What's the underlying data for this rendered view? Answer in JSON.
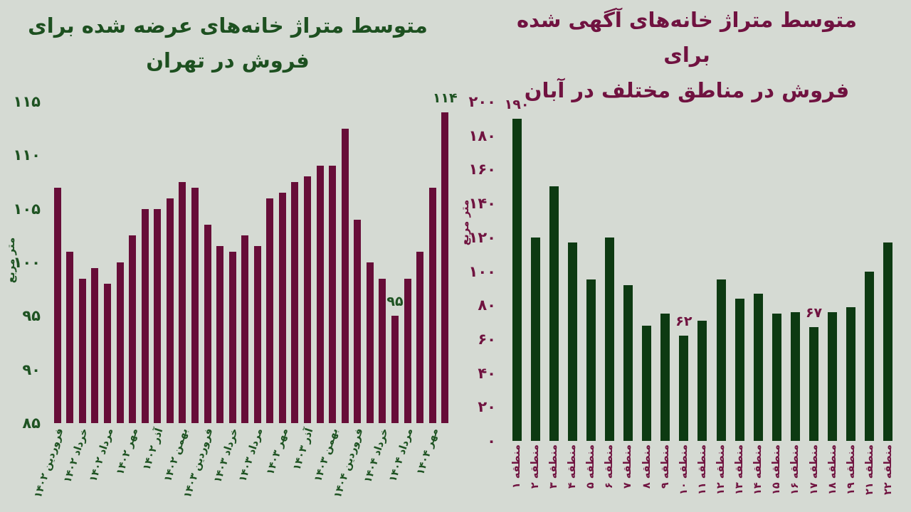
{
  "background": "#d5dad3",
  "chart_data": [
    {
      "type": "bar",
      "title_line1": "متوسط متراژ خانه‌های عرضه شده برای",
      "title_line2": "فروش در تهران",
      "ylabel": "متر مربع",
      "title_color": "#1d5020",
      "text_color": "#1e5322",
      "bar_color": "#670d38",
      "ymin": 85,
      "ymax": 115,
      "grid": false,
      "legend": "none",
      "yticks": [
        {
          "label": "۱۱۵",
          "v": 115
        },
        {
          "label": "۱۱۰",
          "v": 110
        },
        {
          "label": "۱۰۵",
          "v": 105
        },
        {
          "label": "۱۰۰",
          "v": 100
        },
        {
          "label": "۹۵",
          "v": 95
        },
        {
          "label": "۹۰",
          "v": 90
        },
        {
          "label": "۸۵",
          "v": 85
        }
      ],
      "label_rotation": -72,
      "bars": [
        {
          "label": "فروردین ۱۴۰۲",
          "v": 107
        },
        {
          "label": "",
          "v": 101
        },
        {
          "label": "خرداد ۱۴۰۲",
          "v": 98.5
        },
        {
          "label": "",
          "v": 99.5
        },
        {
          "label": "مرداد ۱۴۰۲",
          "v": 98
        },
        {
          "label": "",
          "v": 100
        },
        {
          "label": "مهر ۱۴۰۲",
          "v": 102.5
        },
        {
          "label": "",
          "v": 105
        },
        {
          "label": "آذر ۱۴۰۲",
          "v": 105
        },
        {
          "label": "",
          "v": 106
        },
        {
          "label": "بهمن ۱۴۰۲",
          "v": 107.5
        },
        {
          "label": "",
          "v": 107
        },
        {
          "label": "فروردین ۱۴۰۳",
          "v": 103.5
        },
        {
          "label": "",
          "v": 101.5
        },
        {
          "label": "خرداد ۱۴۰۳",
          "v": 101
        },
        {
          "label": "",
          "v": 102.5
        },
        {
          "label": "مرداد ۱۴۰۳",
          "v": 101.5
        },
        {
          "label": "",
          "v": 106
        },
        {
          "label": "مهر ۱۴۰۳",
          "v": 106.5
        },
        {
          "label": "",
          "v": 107.5
        },
        {
          "label": "آذر ۱۴۰۳",
          "v": 108
        },
        {
          "label": "",
          "v": 109
        },
        {
          "label": "بهمن ۱۴۰۳",
          "v": 109
        },
        {
          "label": "",
          "v": 112.5
        },
        {
          "label": "فروردین ۱۴۰۴",
          "v": 104
        },
        {
          "label": "",
          "v": 100
        },
        {
          "label": "خرداد ۱۴۰۴",
          "v": 98.5
        },
        {
          "label": "",
          "v": 95,
          "ann": "۹۵"
        },
        {
          "label": "مرداد ۱۴۰۴",
          "v": 98.5
        },
        {
          "label": "",
          "v": 101
        },
        {
          "label": "مهر ۱۴۰۴",
          "v": 107
        },
        {
          "label": "",
          "v": 114,
          "ann": "۱۱۴"
        }
      ]
    },
    {
      "type": "bar",
      "title_line1": "متوسط متراژ خانه‌های آگهی شده برای",
      "title_line2": "فروش در مناطق مختلف در آبان",
      "ylabel": "متر مربع",
      "title_color": "#701240",
      "text_color": "#701340",
      "bar_color": "#0d3a12",
      "ymin": 0,
      "ymax": 200,
      "grid": false,
      "legend": "none",
      "yticks": [
        {
          "label": "۲۰۰",
          "v": 200
        },
        {
          "label": "۱۸۰",
          "v": 180
        },
        {
          "label": "۱۶۰",
          "v": 160
        },
        {
          "label": "۱۴۰",
          "v": 140
        },
        {
          "label": "۱۲۰",
          "v": 120
        },
        {
          "label": "۱۰۰",
          "v": 100
        },
        {
          "label": "۸۰",
          "v": 80
        },
        {
          "label": "۶۰",
          "v": 60
        },
        {
          "label": "۴۰",
          "v": 40
        },
        {
          "label": "۲۰",
          "v": 20
        },
        {
          "label": "۰",
          "v": 0
        }
      ],
      "label_rotation": -90,
      "bars": [
        {
          "label": "منطقه ۱",
          "v": 190,
          "ann": "۱۹۰"
        },
        {
          "label": "منطقه ۲",
          "v": 120
        },
        {
          "label": "منطقه ۳",
          "v": 150
        },
        {
          "label": "منطقه ۴",
          "v": 117
        },
        {
          "label": "منطقه ۵",
          "v": 95
        },
        {
          "label": "منطقه ۶",
          "v": 120
        },
        {
          "label": "منطقه ۷",
          "v": 92
        },
        {
          "label": "منطقه ۸",
          "v": 68
        },
        {
          "label": "منطقه ۹",
          "v": 75
        },
        {
          "label": "منطقه ۱۰",
          "v": 62,
          "ann": "۶۲"
        },
        {
          "label": "منطقه ۱۱",
          "v": 71
        },
        {
          "label": "منطقه ۱۲",
          "v": 95
        },
        {
          "label": "منطقه ۱۳",
          "v": 84
        },
        {
          "label": "منطقه ۱۴",
          "v": 87
        },
        {
          "label": "منطقه ۱۵",
          "v": 75
        },
        {
          "label": "منطقه ۱۶",
          "v": 76
        },
        {
          "label": "منطقه ۱۷",
          "v": 67,
          "ann": "۶۷"
        },
        {
          "label": "منطقه ۱۸",
          "v": 76
        },
        {
          "label": "منطقه ۱۹",
          "v": 79
        },
        {
          "label": "منطقه ۲۱",
          "v": 100
        },
        {
          "label": "منطقه ۲۲",
          "v": 117
        }
      ]
    }
  ]
}
